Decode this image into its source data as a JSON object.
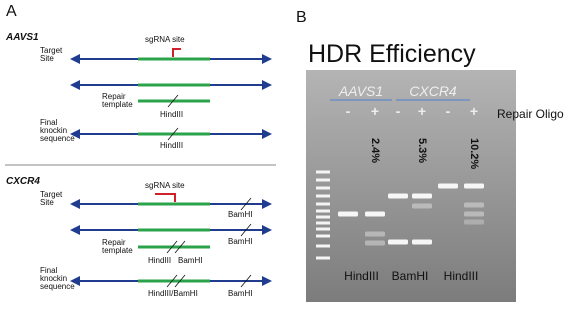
{
  "panel_a": {
    "label": "A",
    "aavs1": {
      "title": "AAVS1",
      "target_label": [
        "Target",
        "Site"
      ],
      "sgrna": "sgRNA site",
      "repair_label": [
        "Repair",
        "template"
      ],
      "repair_site": "HindIII",
      "final_label": [
        "Final",
        "knockin",
        "sequence"
      ],
      "final_site": "HindIII"
    },
    "cxcr4": {
      "title": "CXCR4",
      "target_label": [
        "Target",
        "Site"
      ],
      "sgrna": "sgRNA site",
      "target_site": "BamHI",
      "row2_site": "BamHI",
      "repair_label": [
        "Repair",
        "template"
      ],
      "repair_sites": [
        "HindIII",
        "BamHI"
      ],
      "final_label": [
        "Final",
        "knockin",
        "sequence"
      ],
      "final_sites": [
        "HindIII/BamHI",
        "BamHI"
      ]
    }
  },
  "panel_b": {
    "label": "B",
    "title": "HDR Efficiency",
    "groups": [
      "AAVS1",
      "CXCR4"
    ],
    "lanes": [
      "-",
      "+",
      "-",
      "+",
      "-",
      "+"
    ],
    "row_label": "Repair Oligo",
    "efficiencies": [
      "2.4%",
      "5.3%",
      "10.2%"
    ],
    "enzymes": [
      "HindIII",
      "BamHI",
      "HindIII"
    ]
  }
}
